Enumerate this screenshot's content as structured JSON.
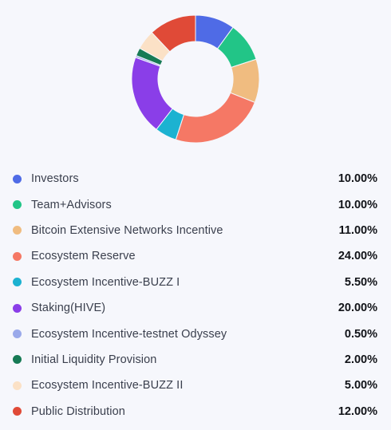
{
  "chart_data": {
    "type": "pie",
    "variant": "donut",
    "start_angle_deg": 0,
    "direction": "clockwise",
    "segments": [
      {
        "label": "Investors",
        "value": 10.0,
        "display": "10.00%",
        "color": "#4f6be6"
      },
      {
        "label": "Team+Advisors",
        "value": 10.0,
        "display": "10.00%",
        "color": "#22c587"
      },
      {
        "label": "Bitcoin Extensive Networks Incentive",
        "value": 11.0,
        "display": "11.00%",
        "color": "#f0bc80"
      },
      {
        "label": "Ecosystem Reserve",
        "value": 24.0,
        "display": "24.00%",
        "color": "#f57865"
      },
      {
        "label": "Ecosystem Incentive-BUZZ I",
        "value": 5.5,
        "display": "5.50%",
        "color": "#1cb2d1"
      },
      {
        "label": "Staking(HIVE)",
        "value": 20.0,
        "display": "20.00%",
        "color": "#8a3ee8"
      },
      {
        "label": "Ecosystem Incentive-testnet Odyssey",
        "value": 0.5,
        "display": "0.50%",
        "color": "#9aa9ea"
      },
      {
        "label": "Initial Liquidity Provision",
        "value": 2.0,
        "display": "2.00%",
        "color": "#177a55"
      },
      {
        "label": "Ecosystem Incentive-BUZZ II",
        "value": 5.0,
        "display": "5.00%",
        "color": "#fbe1c6"
      },
      {
        "label": "Public Distribution",
        "value": 12.0,
        "display": "12.00%",
        "color": "#e04a37"
      }
    ]
  }
}
